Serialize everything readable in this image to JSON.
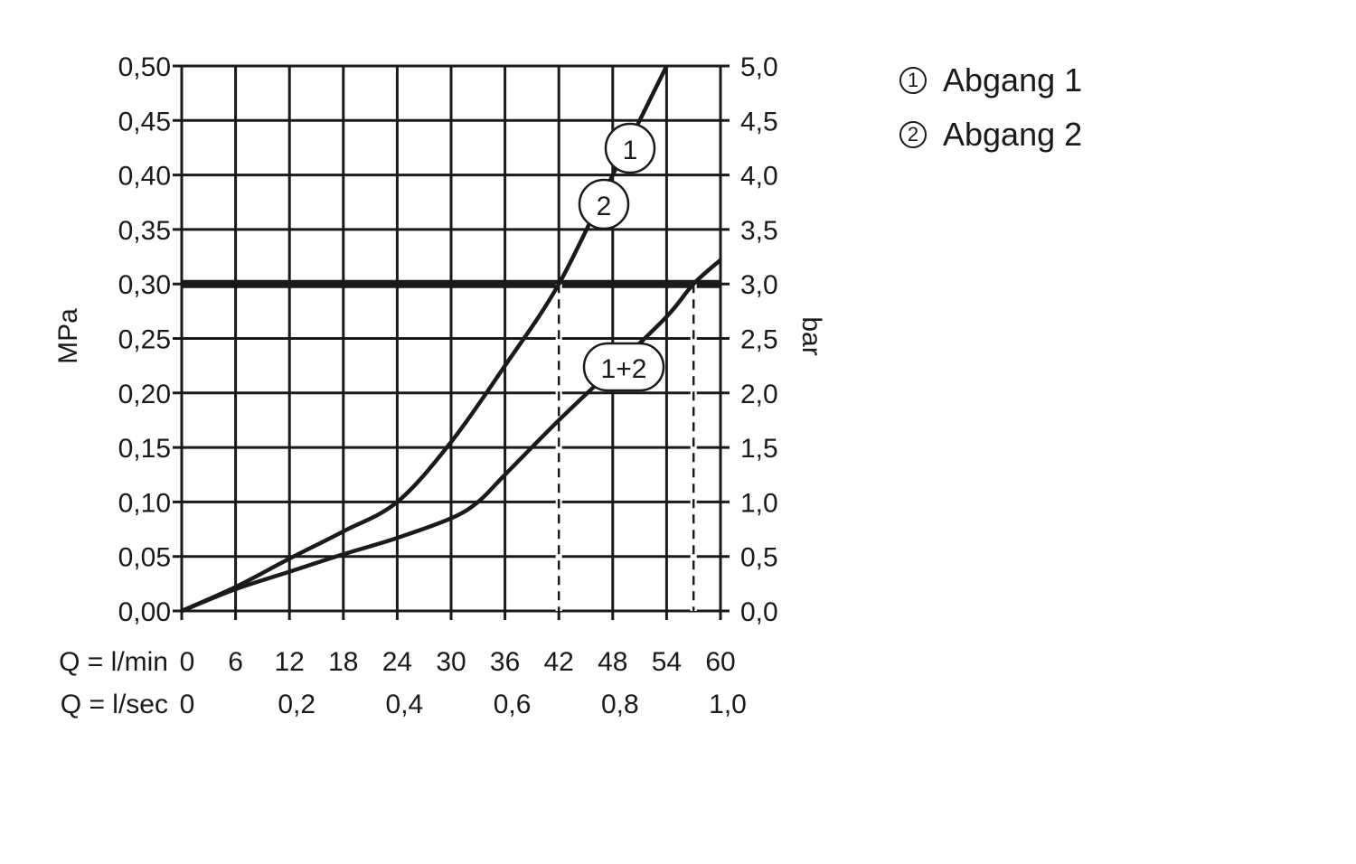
{
  "chart_data": {
    "type": "line",
    "xlabel_rows": [
      "Q = l/min",
      "Q = l/sec"
    ],
    "ylabel_left": "MPa",
    "ylabel_right": "bar",
    "xlim": [
      0,
      60
    ],
    "ylim": [
      0,
      0.5
    ],
    "grid": true,
    "x_ticks_lmin": [
      "0",
      "6",
      "12",
      "18",
      "24",
      "30",
      "36",
      "42",
      "48",
      "54",
      "60"
    ],
    "x_ticks_lsec": [
      {
        "v": 0,
        "label": "0"
      },
      {
        "v": 12,
        "label": "0,2"
      },
      {
        "v": 24,
        "label": "0,4"
      },
      {
        "v": 36,
        "label": "0,6"
      },
      {
        "v": 48,
        "label": "0,8"
      },
      {
        "v": 60,
        "label": "1,0"
      }
    ],
    "y_ticks_left": [
      "0,00",
      "0,05",
      "0,10",
      "0,15",
      "0,20",
      "0,25",
      "0,30",
      "0,35",
      "0,40",
      "0,45",
      "0,50"
    ],
    "y_ticks_right": [
      "0,0",
      "0,5",
      "1,0",
      "1,5",
      "2,0",
      "2,5",
      "3,0",
      "3,5",
      "4,0",
      "4,5",
      "5,0"
    ],
    "reference_line_mpa": 0.3,
    "dashed_markers_lmin": [
      42,
      57
    ],
    "series": [
      {
        "name": "1",
        "label": "1",
        "x": [
          0,
          6,
          12,
          18,
          24,
          30,
          36,
          42,
          48,
          54
        ],
        "y": [
          0,
          0.022,
          0.048,
          0.073,
          0.1,
          0.155,
          0.225,
          0.3,
          0.4,
          0.5
        ]
      },
      {
        "name": "2",
        "label": "2",
        "x": [
          0,
          6,
          12,
          18,
          24,
          30,
          36,
          42,
          48,
          54
        ],
        "y": [
          0,
          0.022,
          0.048,
          0.073,
          0.1,
          0.155,
          0.225,
          0.3,
          0.4,
          0.5
        ]
      },
      {
        "name": "1+2",
        "label": "1+2",
        "x": [
          0,
          6,
          12,
          18,
          24,
          30,
          33,
          36,
          42,
          48,
          54,
          57,
          60
        ],
        "y": [
          0,
          0.02,
          0.036,
          0.052,
          0.067,
          0.085,
          0.1,
          0.125,
          0.175,
          0.222,
          0.27,
          0.3,
          0.322
        ]
      }
    ]
  },
  "legend": [
    {
      "num": "1",
      "text": "Abgang 1"
    },
    {
      "num": "2",
      "text": "Abgang 2"
    }
  ]
}
